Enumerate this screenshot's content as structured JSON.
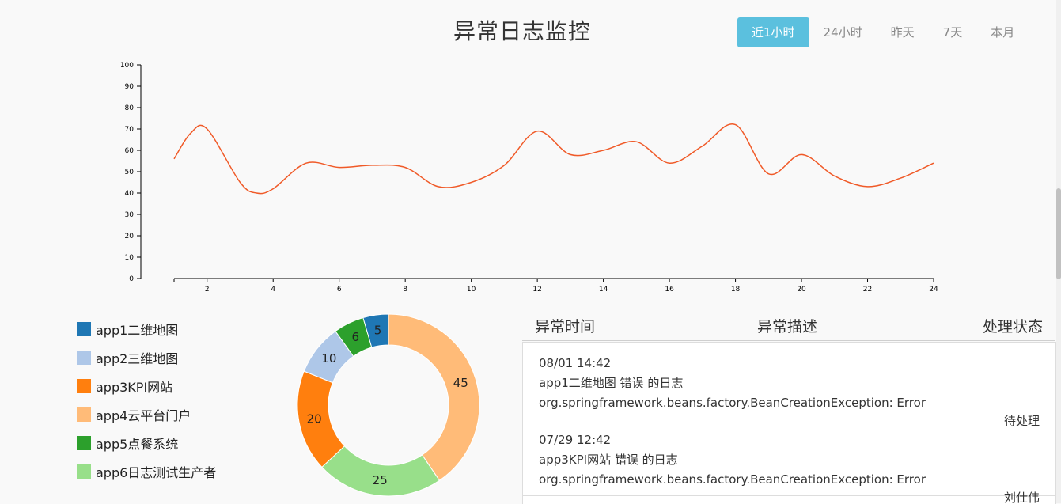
{
  "page": {
    "title": "异常日志监控"
  },
  "range_tabs": [
    {
      "label": "近1小时",
      "active": true
    },
    {
      "label": "24小时",
      "active": false
    },
    {
      "label": "昨天",
      "active": false
    },
    {
      "label": "7天",
      "active": false
    },
    {
      "label": "本月",
      "active": false
    }
  ],
  "chart_data": [
    {
      "type": "line",
      "x": [
        1,
        1.5,
        2,
        3,
        3.5,
        4,
        5,
        6,
        7,
        8,
        9,
        10,
        11,
        12,
        13,
        14,
        15,
        16,
        17,
        18,
        19,
        20,
        21,
        22,
        23,
        24
      ],
      "y": [
        56,
        68,
        70,
        45,
        40,
        42,
        54,
        52,
        53,
        52,
        43,
        45,
        53,
        69,
        58,
        60,
        64,
        54,
        62,
        72,
        49,
        58,
        48,
        43,
        47,
        54
      ],
      "xticks": [
        2,
        4,
        6,
        8,
        10,
        12,
        14,
        16,
        18,
        20,
        22,
        24
      ],
      "yticks": [
        0,
        10,
        20,
        30,
        40,
        50,
        60,
        70,
        80,
        90,
        100
      ],
      "xlim": [
        1,
        24
      ],
      "ylim": [
        0,
        100
      ],
      "color": "#f05a28",
      "grid": false
    },
    {
      "type": "pie",
      "labels": [
        "app1二维地图",
        "app2三维地图",
        "app3KPI网站",
        "app4云平台门户",
        "app5点餐系统",
        "app6日志测试生产者"
      ],
      "values": [
        5,
        10,
        20,
        45,
        6,
        25
      ],
      "colors": [
        "#1f77b4",
        "#aec7e8",
        "#ff7f0e",
        "#ffbb78",
        "#2ca02c",
        "#98df8a"
      ]
    }
  ],
  "table": {
    "headers": {
      "time": "异常时间",
      "desc": "异常描述",
      "status": "处理状态"
    },
    "rows": [
      {
        "time": "08/01 14:42",
        "app_line": "app1二维地图 错误 的日志",
        "exception": "org.springframework.beans.factory.BeanCreationException: Error",
        "status": "待处理"
      },
      {
        "time": "07/29 12:42",
        "app_line": "app3KPI网站 错误 的日志",
        "exception": "org.springframework.beans.factory.BeanCreationException: Error",
        "status": "刘仕伟"
      }
    ]
  }
}
